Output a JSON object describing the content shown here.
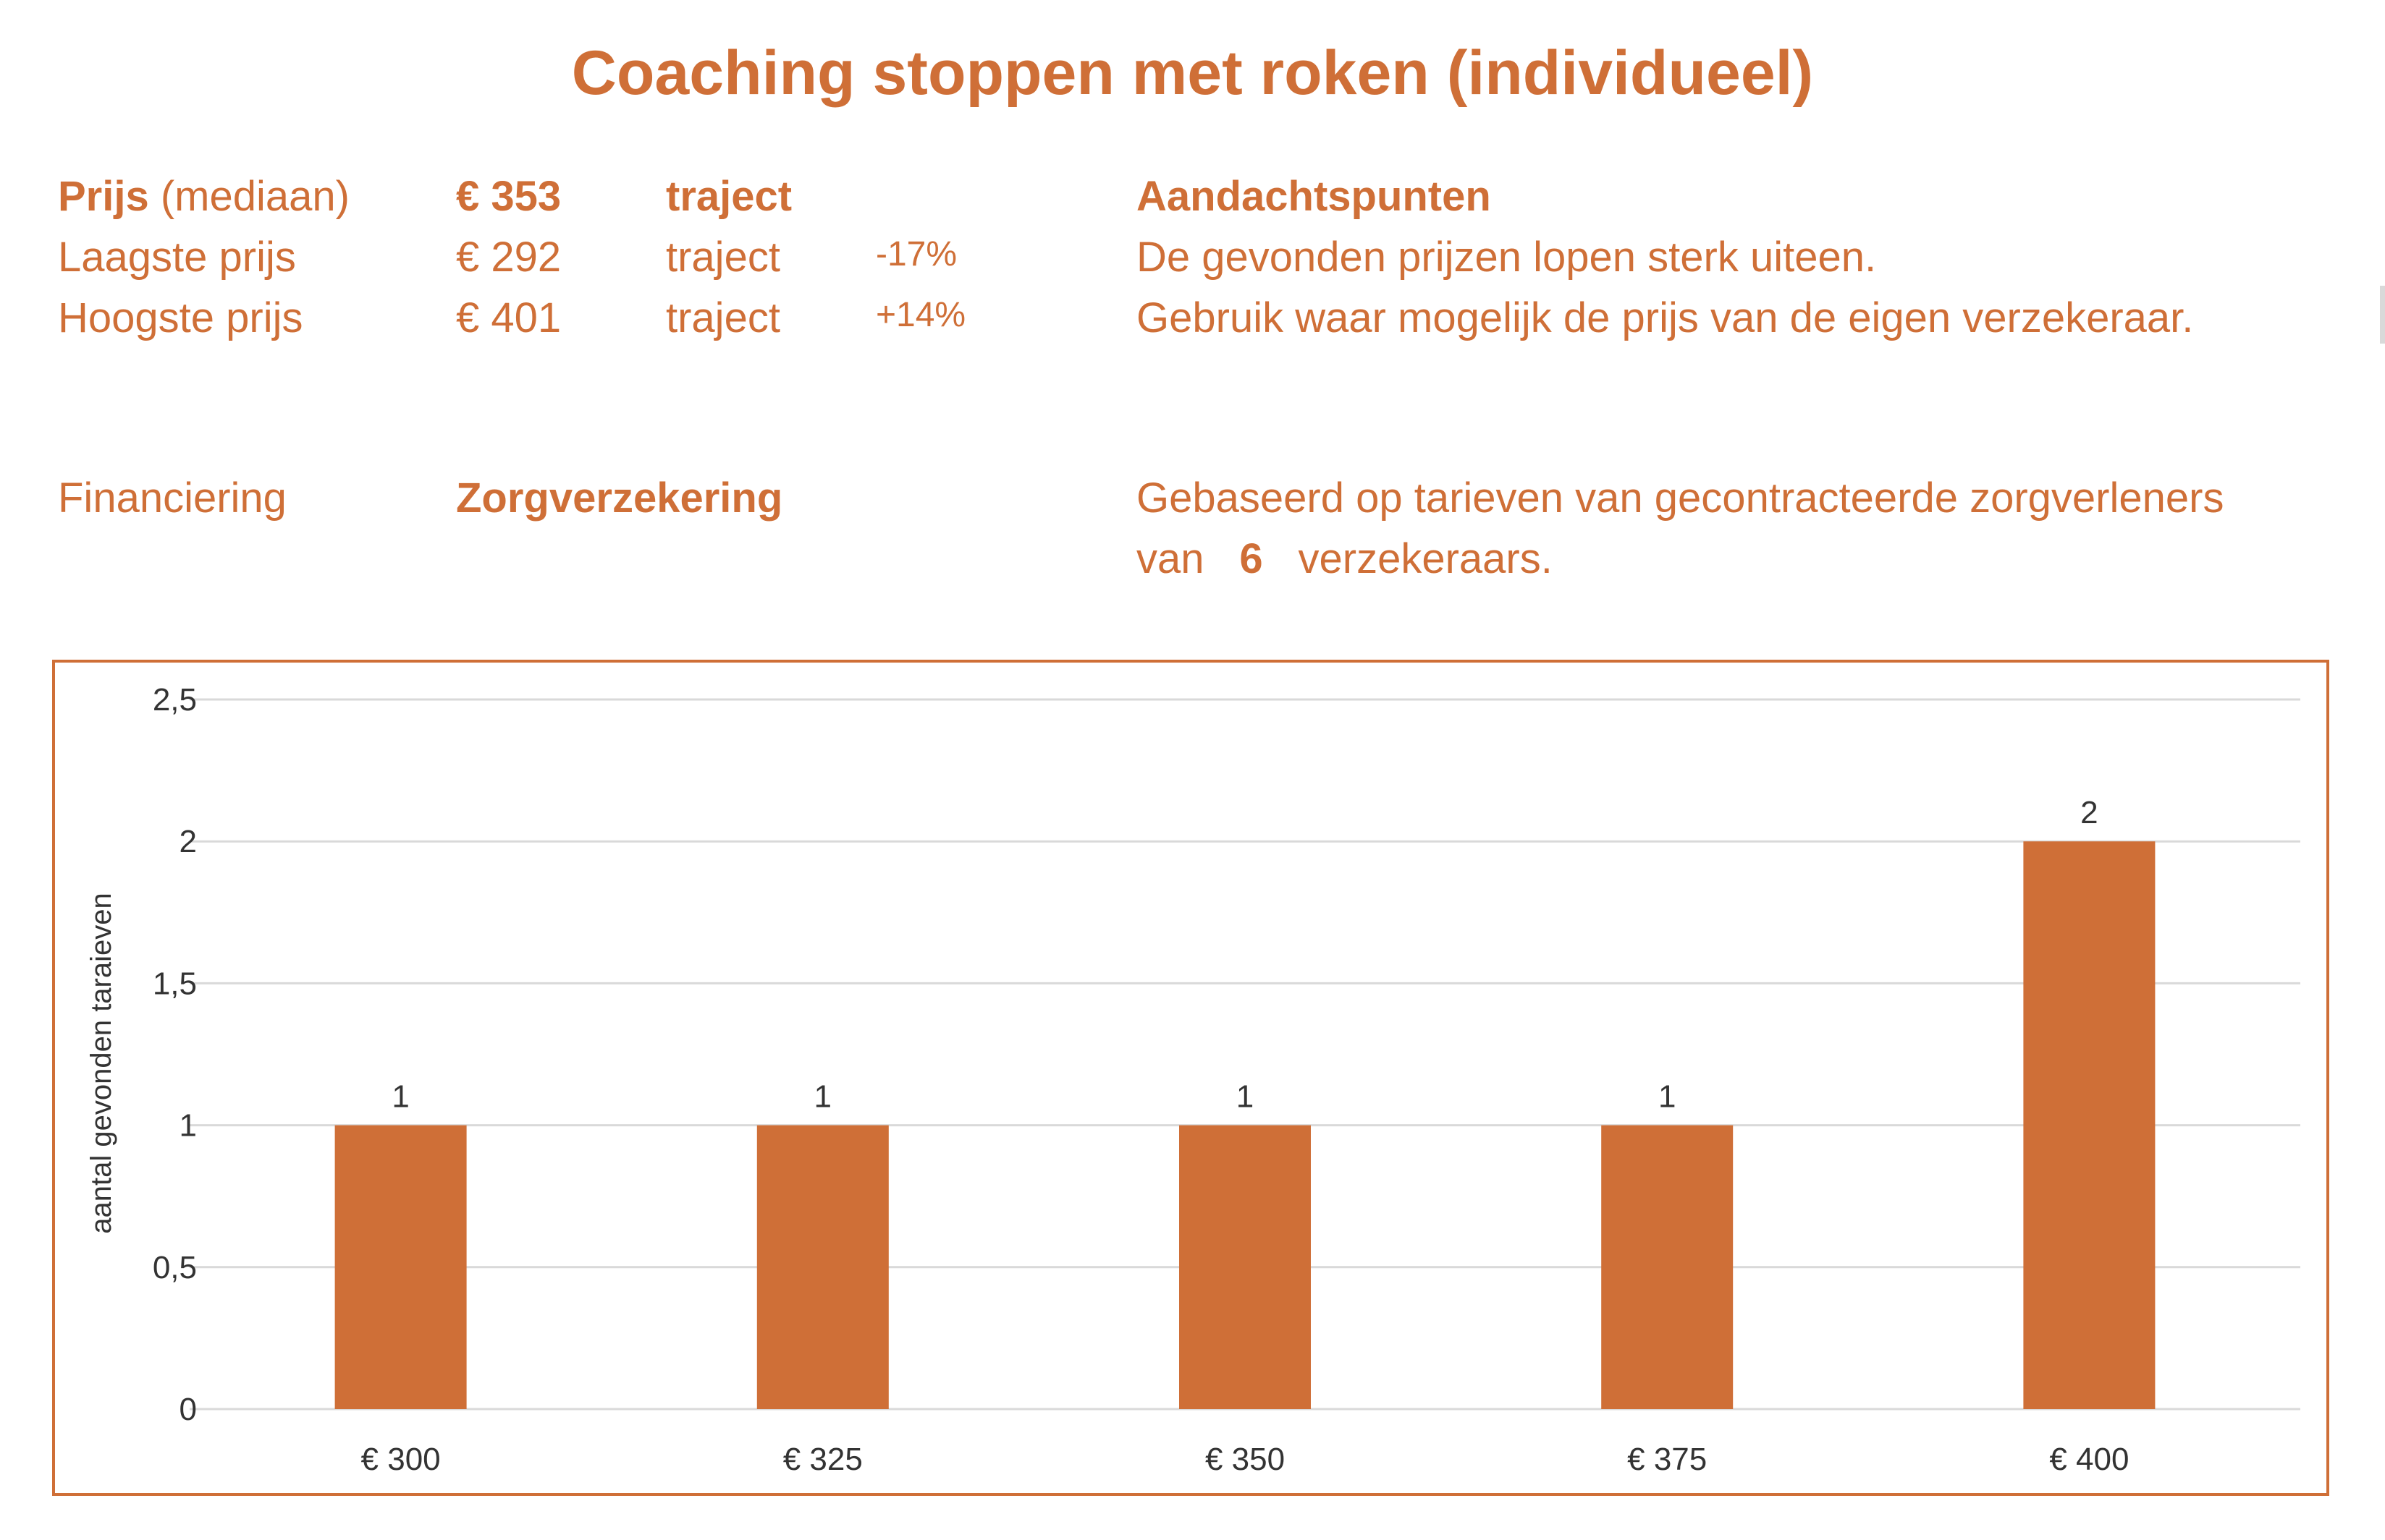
{
  "title": "Coaching stoppen met roken (individueel)",
  "summary": {
    "rows": [
      {
        "label_bold": "Prijs",
        "label_rest": " (mediaan)",
        "price": "€ 353",
        "unit": "traject",
        "pct": ""
      },
      {
        "label_bold": "",
        "label_rest": "Laagste prijs",
        "price": "€ 292",
        "unit": "traject",
        "pct": "-17%"
      },
      {
        "label_bold": "",
        "label_rest": "Hoogste prijs",
        "price": "€ 401",
        "unit": "traject",
        "pct": "+14%"
      }
    ],
    "financing_label": "Financiering",
    "financing_value": "Zorgverzekering"
  },
  "notes": {
    "heading": "Aandachtspunten",
    "line1": "De gevonden prijzen lopen sterk uiteen.",
    "line2": "Gebruik waar mogelijk de prijs van de eigen verzekeraar.",
    "basis_line1": "Gebaseerd op tarieven van gecontracteerde zorgverleners",
    "basis_van": "van",
    "basis_count": "6",
    "basis_rest": "verzekeraars."
  },
  "colors": {
    "accent": "#cf6f37",
    "bar": "#cf6f37",
    "grid": "#d9d9d9",
    "axis_text": "#333333"
  },
  "chart_data": {
    "type": "bar",
    "categories": [
      "€ 300",
      "€ 325",
      "€ 350",
      "€ 375",
      "€ 400"
    ],
    "values": [
      1,
      1,
      1,
      1,
      2
    ],
    "data_labels": [
      "1",
      "1",
      "1",
      "1",
      "2"
    ],
    "title": "",
    "xlabel": "",
    "ylabel": "aantal gevonden taraieven",
    "ylim": [
      0,
      2.5
    ],
    "yticks": [
      0,
      0.5,
      1,
      1.5,
      2,
      2.5
    ],
    "ytick_labels": [
      "0",
      "0,5",
      "1",
      "1,5",
      "2",
      "2,5"
    ],
    "grid": true,
    "legend": "none"
  }
}
